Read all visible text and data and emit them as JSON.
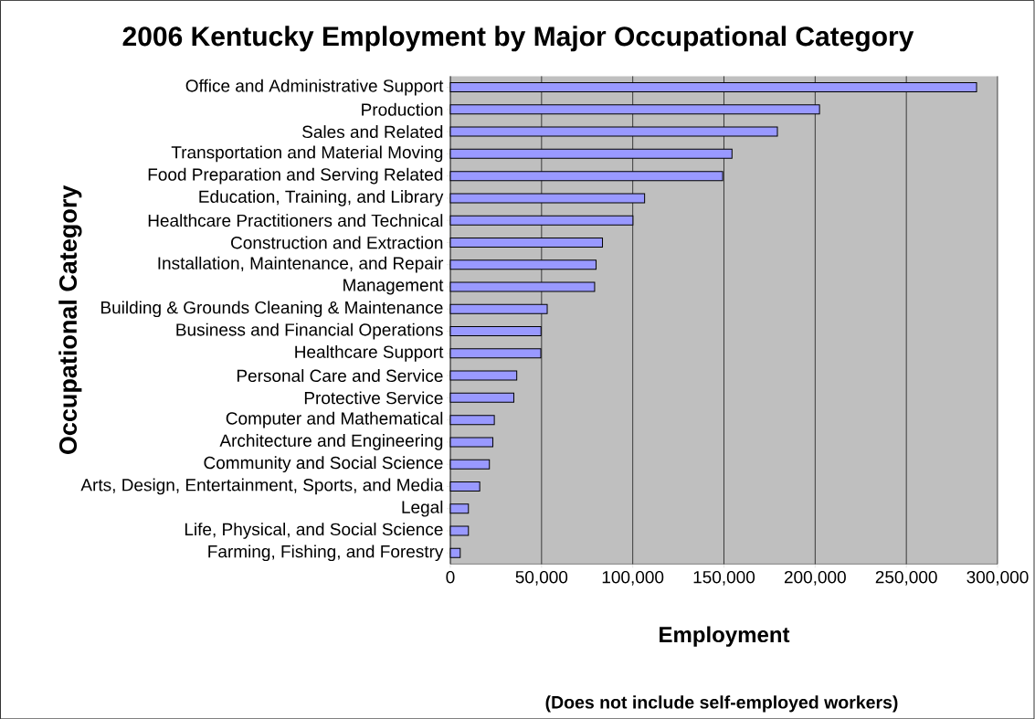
{
  "chart_data": {
    "type": "bar",
    "orientation": "horizontal",
    "title": "2006 Kentucky Employment by Major Occupational Category",
    "xlabel": "Employment",
    "ylabel": "Occupational Category",
    "annotations": [
      "(Does not include self-employed workers)"
    ],
    "categories": [
      "Office and Administrative Support",
      "Production",
      "Sales and Related",
      "Transportation and Material Moving",
      "Food Preparation and Serving Related",
      "Education, Training, and Library",
      "Healthcare Practitioners and Technical",
      "Construction and Extraction",
      "Installation, Maintenance, and Repair",
      "Management",
      "Building & Grounds Cleaning & Maintenance",
      "Business and Financial Operations",
      "Healthcare Support",
      "Personal Care and Service",
      "Protective Service",
      "Computer and Mathematical",
      "Architecture and Engineering",
      "Community and Social Science",
      "Arts, Design, Entertainment, Sports, and Media",
      "Legal",
      "Life, Physical, and Social Science",
      "Farming, Fishing, and Forestry"
    ],
    "values": [
      288500,
      202400,
      179300,
      154400,
      149300,
      106500,
      100100,
      83400,
      79900,
      79100,
      53100,
      49700,
      49600,
      36400,
      34800,
      24100,
      23300,
      21400,
      16100,
      9900,
      9900,
      5400
    ],
    "color": "#9999ff",
    "xlim": [
      0,
      300000
    ],
    "xticks": [
      {
        "value": 0,
        "label": "0"
      },
      {
        "value": 50000,
        "label": "50,000"
      },
      {
        "value": 100000,
        "label": "100,000"
      },
      {
        "value": 150000,
        "label": "150,000"
      },
      {
        "value": 200000,
        "label": "200,000"
      },
      {
        "value": 250000,
        "label": "250,000"
      },
      {
        "value": 300000,
        "label": "300,000"
      }
    ],
    "grid": "x"
  }
}
